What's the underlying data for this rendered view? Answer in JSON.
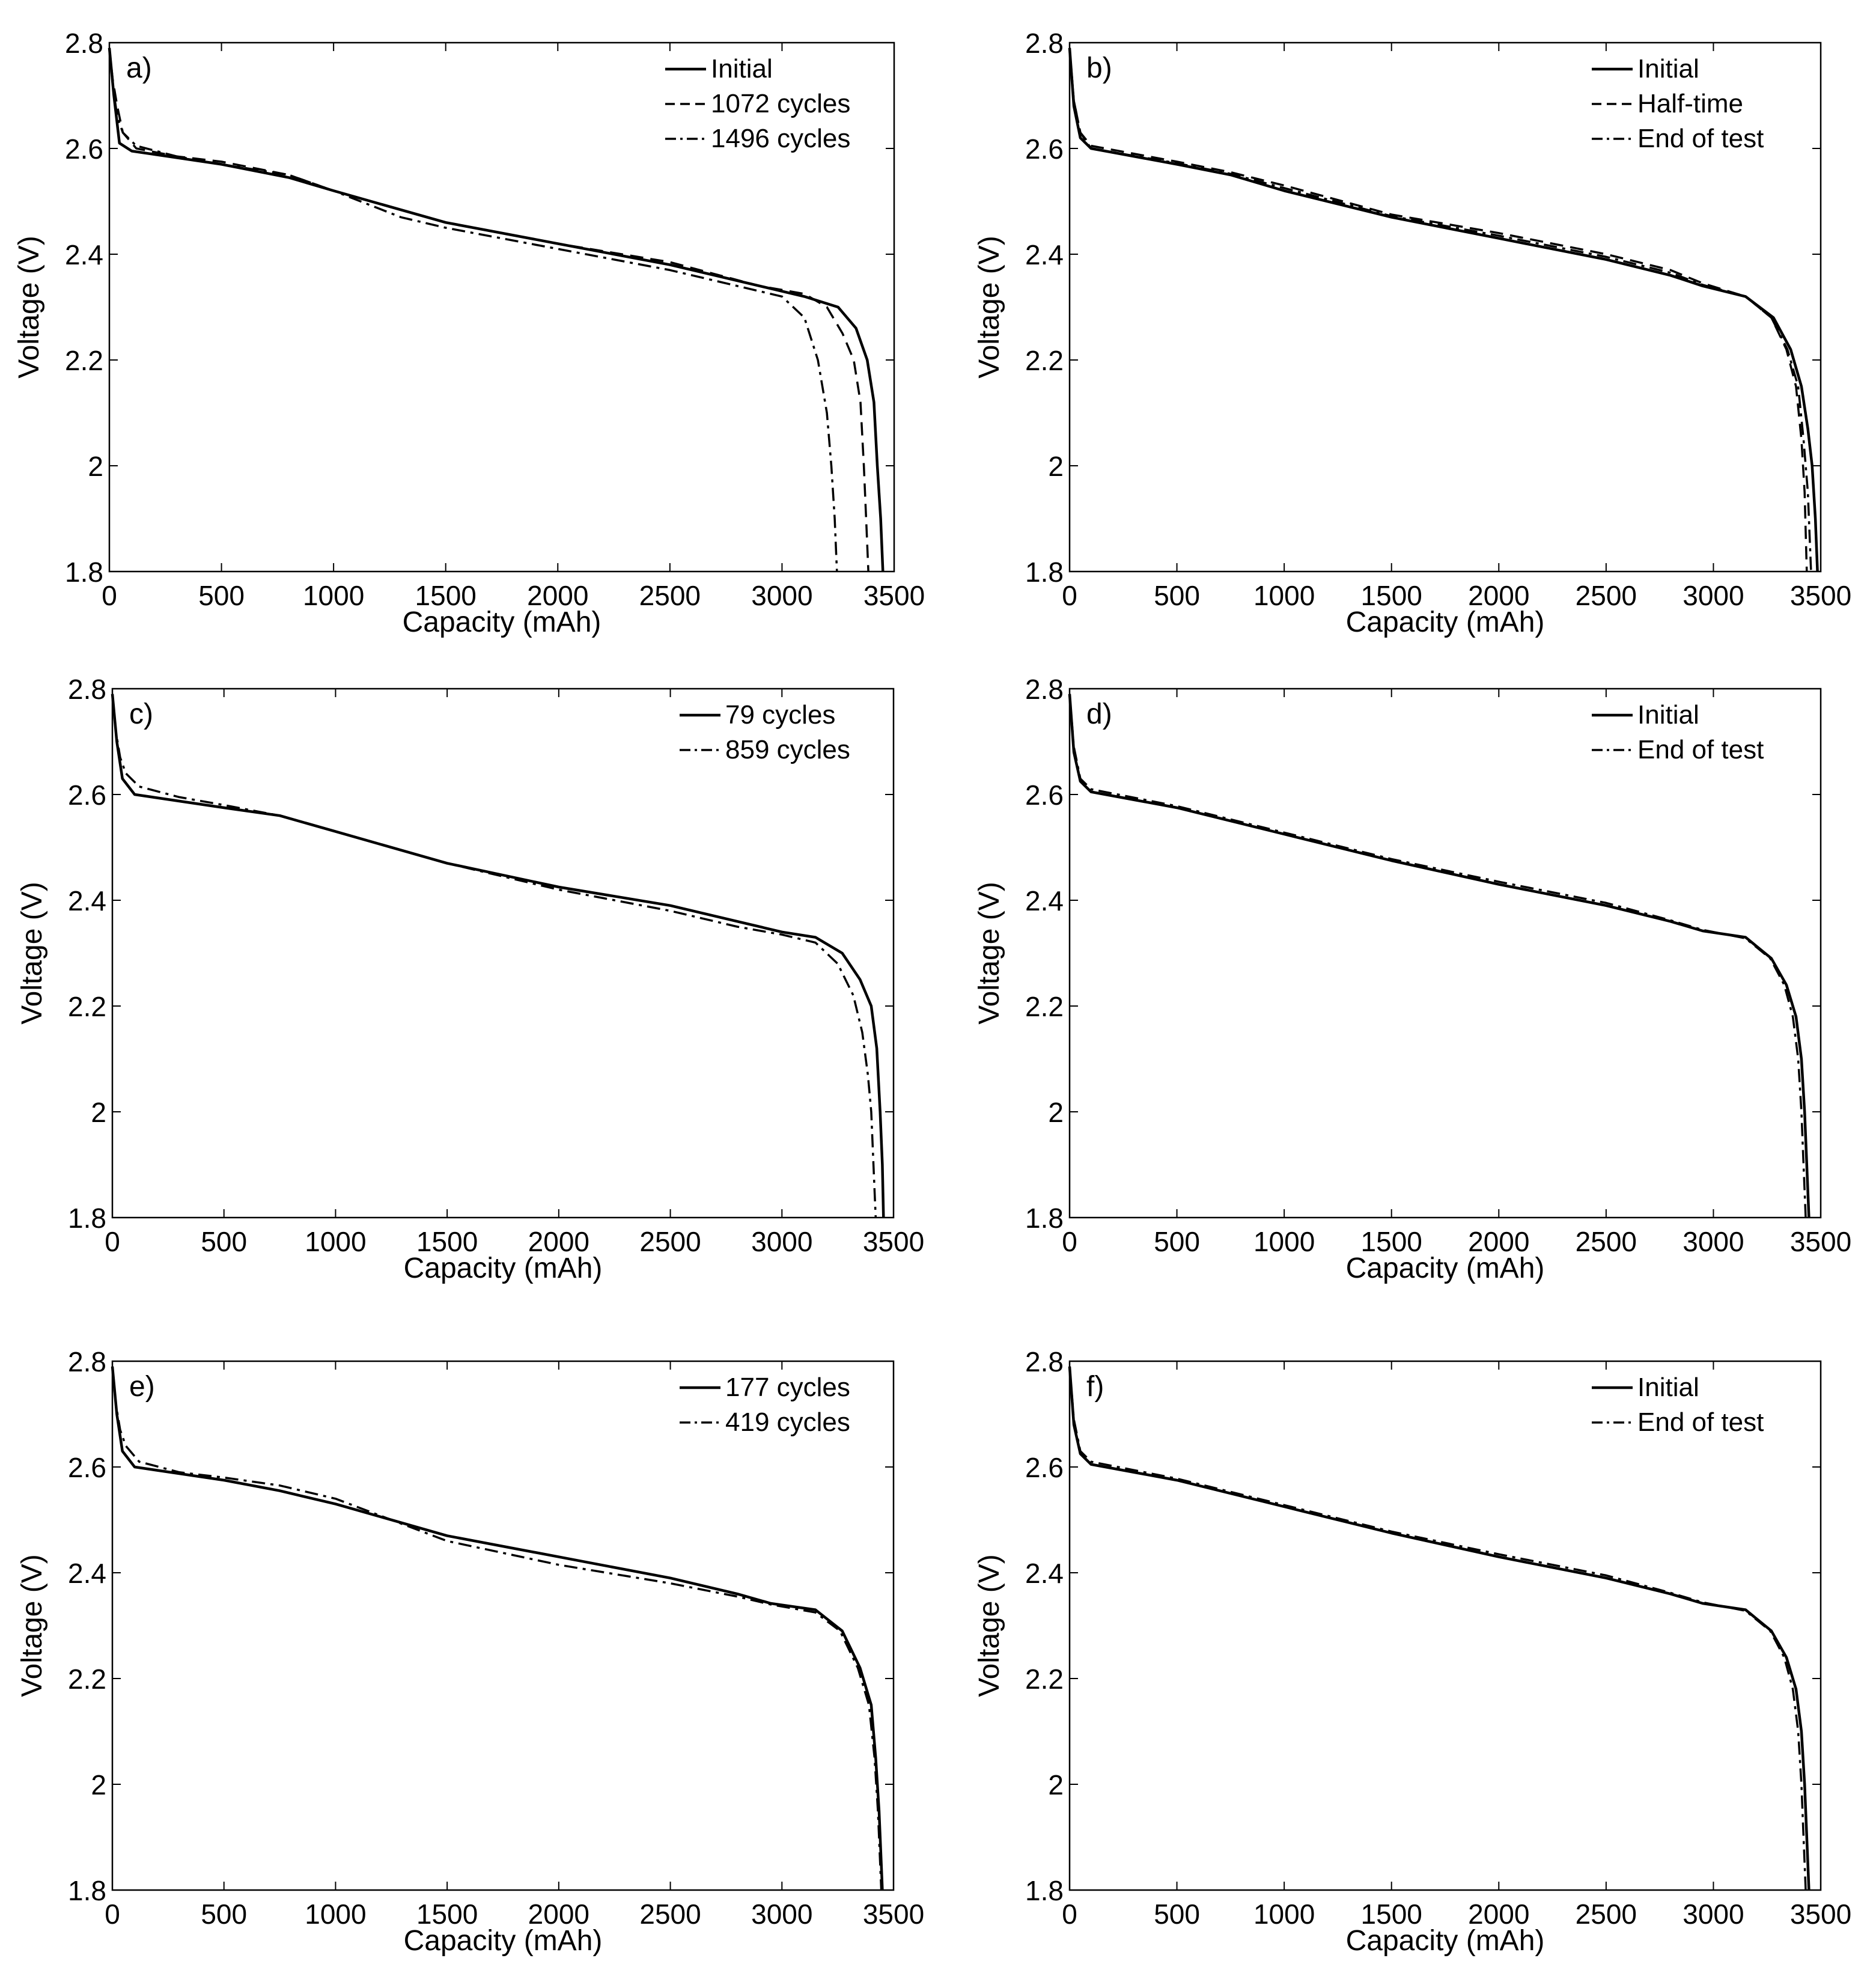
{
  "figure": {
    "panel_count": 6
  },
  "chart_data": [
    {
      "panel": "a)",
      "type": "line",
      "xlabel": "Capacity (mAh)",
      "ylabel": "Voltage (V)",
      "xlim": [
        0,
        3500
      ],
      "ylim": [
        1.8,
        2.8
      ],
      "xticks": [
        0,
        500,
        1000,
        1500,
        2000,
        2500,
        3000,
        3500
      ],
      "yticks": [
        1.8,
        2.0,
        2.2,
        2.4,
        2.6,
        2.8
      ],
      "yticklabels": [
        "1.8",
        "2",
        "2.2",
        "2.4",
        "2.6",
        "2.8"
      ],
      "legend_position": "top-right",
      "series": [
        {
          "name": "Initial",
          "style": "solid",
          "x": [
            0,
            20,
            45,
            100,
            500,
            800,
            1000,
            1500,
            2000,
            2500,
            2900,
            3100,
            3250,
            3330,
            3380,
            3410,
            3425,
            3440,
            3450
          ],
          "y": [
            2.79,
            2.7,
            2.61,
            2.595,
            2.57,
            2.545,
            2.52,
            2.46,
            2.42,
            2.38,
            2.34,
            2.32,
            2.3,
            2.26,
            2.2,
            2.12,
            2.0,
            1.9,
            1.8
          ]
        },
        {
          "name": "1072 cycles",
          "style": "dashed",
          "x": [
            0,
            15,
            35,
            60,
            120,
            300,
            500,
            800,
            1000,
            1500,
            2000,
            2500,
            2900,
            3100,
            3200,
            3270,
            3320,
            3350,
            3365,
            3375,
            3385
          ],
          "y": [
            2.79,
            2.73,
            2.68,
            2.63,
            2.6,
            2.585,
            2.575,
            2.55,
            2.52,
            2.46,
            2.42,
            2.385,
            2.34,
            2.325,
            2.3,
            2.25,
            2.2,
            2.12,
            2.0,
            1.9,
            1.8
          ]
        },
        {
          "name": "1496 cycles",
          "style": "dashdot",
          "x": [
            0,
            15,
            35,
            60,
            120,
            300,
            500,
            800,
            1000,
            1300,
            1500,
            2000,
            2500,
            2800,
            3000,
            3100,
            3160,
            3200,
            3220,
            3235,
            3245
          ],
          "y": [
            2.79,
            2.72,
            2.66,
            2.63,
            2.605,
            2.585,
            2.57,
            2.55,
            2.52,
            2.47,
            2.45,
            2.41,
            2.37,
            2.34,
            2.32,
            2.28,
            2.2,
            2.1,
            2.0,
            1.9,
            1.8
          ]
        }
      ]
    },
    {
      "panel": "b)",
      "type": "line",
      "xlabel": "Capacity (mAh)",
      "ylabel": "Voltage (V)",
      "xlim": [
        0,
        3500
      ],
      "ylim": [
        1.8,
        2.8
      ],
      "xticks": [
        0,
        500,
        1000,
        1500,
        2000,
        2500,
        3000,
        3500
      ],
      "yticks": [
        1.8,
        2.0,
        2.2,
        2.4,
        2.6,
        2.8
      ],
      "yticklabels": [
        "1.8",
        "2",
        "2.2",
        "2.4",
        "2.6",
        "2.8"
      ],
      "legend_position": "top-right",
      "series": [
        {
          "name": "Initial",
          "style": "solid",
          "x": [
            0,
            20,
            50,
            100,
            500,
            750,
            1000,
            1500,
            2000,
            2500,
            2800,
            2950,
            3150,
            3280,
            3360,
            3410,
            3440,
            3460,
            3475,
            3485
          ],
          "y": [
            2.79,
            2.68,
            2.62,
            2.6,
            2.57,
            2.55,
            2.52,
            2.47,
            2.43,
            2.39,
            2.36,
            2.34,
            2.32,
            2.28,
            2.22,
            2.15,
            2.07,
            2.0,
            1.9,
            1.8
          ]
        },
        {
          "name": "Half-time",
          "style": "dashed",
          "x": [
            0,
            20,
            50,
            100,
            500,
            750,
            1000,
            1500,
            2000,
            2500,
            2800,
            2950,
            3150,
            3270,
            3340,
            3385,
            3410,
            3425,
            3435
          ],
          "y": [
            2.79,
            2.69,
            2.63,
            2.605,
            2.575,
            2.555,
            2.53,
            2.475,
            2.44,
            2.4,
            2.37,
            2.345,
            2.32,
            2.28,
            2.22,
            2.15,
            2.05,
            1.95,
            1.8
          ]
        },
        {
          "name": "End of test",
          "style": "dashdot",
          "x": [
            0,
            20,
            50,
            100,
            500,
            750,
            1000,
            1500,
            2000,
            2500,
            2800,
            2950,
            3150,
            3270,
            3345,
            3395,
            3420,
            3440,
            3455
          ],
          "y": [
            2.79,
            2.69,
            2.63,
            2.6,
            2.572,
            2.552,
            2.525,
            2.472,
            2.435,
            2.395,
            2.365,
            2.342,
            2.32,
            2.28,
            2.22,
            2.15,
            2.05,
            1.95,
            1.8
          ]
        }
      ]
    },
    {
      "panel": "c)",
      "type": "line",
      "xlabel": "Capacity (mAh)",
      "ylabel": "Voltage (V)",
      "xlim": [
        0,
        3500
      ],
      "ylim": [
        1.8,
        2.8
      ],
      "xticks": [
        0,
        500,
        1000,
        1500,
        2000,
        2500,
        3000,
        3500
      ],
      "yticks": [
        1.8,
        2.0,
        2.2,
        2.4,
        2.6,
        2.8
      ],
      "yticklabels": [
        "1.8",
        "2",
        "2.2",
        "2.4",
        "2.6",
        "2.8"
      ],
      "legend_position": "top-right",
      "series": [
        {
          "name": "79 cycles",
          "style": "solid",
          "x": [
            0,
            20,
            45,
            100,
            500,
            750,
            1000,
            1500,
            2000,
            2500,
            2800,
            3000,
            3150,
            3270,
            3350,
            3400,
            3425,
            3440,
            3450,
            3455
          ],
          "y": [
            2.79,
            2.7,
            2.63,
            2.6,
            2.575,
            2.56,
            2.53,
            2.47,
            2.425,
            2.39,
            2.36,
            2.34,
            2.33,
            2.3,
            2.25,
            2.2,
            2.12,
            2.0,
            1.9,
            1.8
          ]
        },
        {
          "name": "859 cycles",
          "style": "dashdot",
          "x": [
            0,
            15,
            35,
            60,
            120,
            300,
            500,
            750,
            1000,
            1500,
            2000,
            2500,
            2800,
            3000,
            3150,
            3250,
            3320,
            3360,
            3385,
            3400,
            3410,
            3420
          ],
          "y": [
            2.79,
            2.72,
            2.67,
            2.64,
            2.615,
            2.595,
            2.58,
            2.56,
            2.53,
            2.47,
            2.42,
            2.38,
            2.35,
            2.335,
            2.32,
            2.28,
            2.22,
            2.15,
            2.07,
            2.0,
            1.9,
            1.8
          ]
        }
      ]
    },
    {
      "panel": "d)",
      "type": "line",
      "xlabel": "Capacity (mAh)",
      "ylabel": "Voltage (V)",
      "xlim": [
        0,
        3500
      ],
      "ylim": [
        1.8,
        2.8
      ],
      "xticks": [
        0,
        500,
        1000,
        1500,
        2000,
        2500,
        3000,
        3500
      ],
      "yticks": [
        1.8,
        2.0,
        2.2,
        2.4,
        2.6,
        2.8
      ],
      "yticklabels": [
        "1.8",
        "2",
        "2.2",
        "2.4",
        "2.6",
        "2.8"
      ],
      "legend_position": "top-right",
      "series": [
        {
          "name": "Initial",
          "style": "solid",
          "x": [
            0,
            20,
            50,
            100,
            500,
            1000,
            1500,
            2000,
            2500,
            2800,
            2950,
            3150,
            3270,
            3340,
            3385,
            3410,
            3425,
            3435,
            3445
          ],
          "y": [
            2.79,
            2.68,
            2.625,
            2.605,
            2.575,
            2.525,
            2.475,
            2.43,
            2.39,
            2.36,
            2.342,
            2.33,
            2.29,
            2.24,
            2.18,
            2.1,
            2.0,
            1.9,
            1.8
          ]
        },
        {
          "name": "End of test",
          "style": "dashdot",
          "x": [
            0,
            20,
            50,
            100,
            500,
            1000,
            1500,
            2000,
            2500,
            2800,
            2950,
            3150,
            3265,
            3330,
            3370,
            3395,
            3410,
            3420,
            3430
          ],
          "y": [
            2.79,
            2.69,
            2.63,
            2.61,
            2.578,
            2.528,
            2.478,
            2.435,
            2.395,
            2.362,
            2.344,
            2.328,
            2.29,
            2.24,
            2.18,
            2.1,
            2.0,
            1.9,
            1.8
          ]
        }
      ]
    },
    {
      "panel": "e)",
      "type": "line",
      "xlabel": "Capacity (mAh)",
      "ylabel": "Voltage (V)",
      "xlim": [
        0,
        3500
      ],
      "ylim": [
        1.8,
        2.8
      ],
      "xticks": [
        0,
        500,
        1000,
        1500,
        2000,
        2500,
        3000,
        3500
      ],
      "yticks": [
        1.8,
        2.0,
        2.2,
        2.4,
        2.6,
        2.8
      ],
      "yticklabels": [
        "1.8",
        "2",
        "2.2",
        "2.4",
        "2.6",
        "2.8"
      ],
      "legend_position": "top-right",
      "series": [
        {
          "name": "177 cycles",
          "style": "solid",
          "x": [
            0,
            20,
            45,
            100,
            500,
            750,
            1000,
            1500,
            2000,
            2500,
            2800,
            2950,
            3150,
            3270,
            3350,
            3400,
            3420,
            3435,
            3445,
            3450
          ],
          "y": [
            2.79,
            2.7,
            2.63,
            2.6,
            2.575,
            2.555,
            2.53,
            2.47,
            2.43,
            2.39,
            2.36,
            2.342,
            2.33,
            2.29,
            2.22,
            2.15,
            2.05,
            1.95,
            1.85,
            1.8
          ]
        },
        {
          "name": "419 cycles",
          "style": "dashdot",
          "x": [
            0,
            15,
            35,
            60,
            120,
            300,
            500,
            750,
            1000,
            1250,
            1500,
            2000,
            2500,
            2800,
            2950,
            3150,
            3260,
            3340,
            3390,
            3415,
            3430,
            3445
          ],
          "y": [
            2.79,
            2.72,
            2.67,
            2.64,
            2.61,
            2.59,
            2.58,
            2.565,
            2.54,
            2.5,
            2.46,
            2.415,
            2.38,
            2.355,
            2.34,
            2.325,
            2.29,
            2.22,
            2.15,
            2.05,
            1.95,
            1.8
          ]
        }
      ]
    },
    {
      "panel": "f)",
      "type": "line",
      "xlabel": "Capacity (mAh)",
      "ylabel": "Voltage (V)",
      "xlim": [
        0,
        3500
      ],
      "ylim": [
        1.8,
        2.8
      ],
      "xticks": [
        0,
        500,
        1000,
        1500,
        2000,
        2500,
        3000,
        3500
      ],
      "yticks": [
        1.8,
        2.0,
        2.2,
        2.4,
        2.6,
        2.8
      ],
      "yticklabels": [
        "1.8",
        "2",
        "2.2",
        "2.4",
        "2.6",
        "2.8"
      ],
      "legend_position": "top-right",
      "series": [
        {
          "name": "Initial",
          "style": "solid",
          "x": [
            0,
            20,
            50,
            100,
            500,
            1000,
            1500,
            2000,
            2500,
            2800,
            2950,
            3150,
            3270,
            3340,
            3385,
            3410,
            3425,
            3435,
            3445
          ],
          "y": [
            2.79,
            2.68,
            2.625,
            2.605,
            2.575,
            2.525,
            2.475,
            2.43,
            2.39,
            2.36,
            2.342,
            2.33,
            2.29,
            2.24,
            2.18,
            2.1,
            2.0,
            1.9,
            1.8
          ]
        },
        {
          "name": "End of test",
          "style": "dashdot",
          "x": [
            0,
            20,
            50,
            100,
            500,
            1000,
            1500,
            2000,
            2500,
            2800,
            2950,
            3150,
            3265,
            3330,
            3370,
            3395,
            3410,
            3420,
            3430
          ],
          "y": [
            2.79,
            2.69,
            2.63,
            2.61,
            2.578,
            2.528,
            2.478,
            2.435,
            2.395,
            2.362,
            2.344,
            2.328,
            2.29,
            2.24,
            2.18,
            2.1,
            2.0,
            1.9,
            1.8
          ]
        }
      ]
    }
  ]
}
